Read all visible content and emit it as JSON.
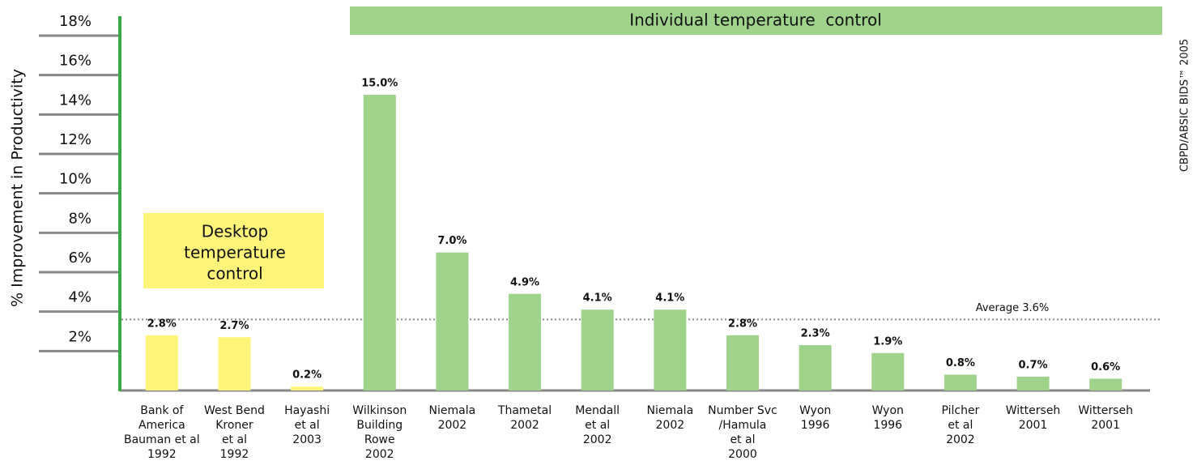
{
  "chart_data": {
    "type": "bar",
    "y_axis_label": "% Improvement in Productivity",
    "categories": [
      [
        "Bank of",
        "America",
        "Bauman et al",
        "1992"
      ],
      [
        "West Bend",
        "Kroner",
        "et al",
        "1992"
      ],
      [
        "Hayashi",
        "et al",
        "2003"
      ],
      [
        "Wilkinson",
        "Building",
        "Rowe",
        "2002"
      ],
      [
        "Niemala",
        "2002"
      ],
      [
        "Thametal",
        "2002"
      ],
      [
        "Mendall",
        "et al",
        "2002"
      ],
      [
        "Niemala",
        "2002"
      ],
      [
        "Number Svc",
        "/Hamula",
        "et al",
        "2000"
      ],
      [
        "Wyon",
        "1996"
      ],
      [
        "Wyon",
        "1996"
      ],
      [
        "Pilcher",
        "et al",
        "2002"
      ],
      [
        "Witterseh",
        "2001"
      ],
      [
        "Witterseh",
        "2001"
      ]
    ],
    "values": [
      2.8,
      2.7,
      0.2,
      15.0,
      7.0,
      4.9,
      4.1,
      4.1,
      2.8,
      2.3,
      1.9,
      0.8,
      0.7,
      0.6
    ],
    "value_labels": [
      "2.8%",
      "2.7%",
      "0.2%",
      "15.0%",
      "7.0%",
      "4.9%",
      "4.1%",
      "4.1%",
      "2.8%",
      "2.3%",
      "1.9%",
      "0.8%",
      "0.7%",
      "0.6%"
    ],
    "colors": [
      "#fff47a",
      "#fff47a",
      "#fff47a",
      "#9fd28a",
      "#9fd28a",
      "#9fd28a",
      "#9fd28a",
      "#9fd28a",
      "#9fd28a",
      "#9fd28a",
      "#9fd28a",
      "#9fd28a",
      "#9fd28a",
      "#9fd28a"
    ],
    "ylim": [
      0,
      18
    ],
    "yticks": [
      {
        "value": 2,
        "label": "2%"
      },
      {
        "value": 4,
        "label": "4%"
      },
      {
        "value": 6,
        "label": "6%"
      },
      {
        "value": 8,
        "label": "8%"
      },
      {
        "value": 10,
        "label": "10%"
      },
      {
        "value": 12,
        "label": "12%"
      },
      {
        "value": 14,
        "label": "14%"
      },
      {
        "value": 16,
        "label": "16%"
      },
      {
        "value": 18,
        "label": "18%"
      }
    ],
    "average": {
      "value": 3.6,
      "label": "Average 3.6%"
    },
    "annotations": {
      "desktop": [
        "Desktop",
        "temperature",
        "control"
      ],
      "individual": "Individual temperature  control",
      "copyright": "CBPD/ABSIC BIDS™ 2005"
    }
  }
}
